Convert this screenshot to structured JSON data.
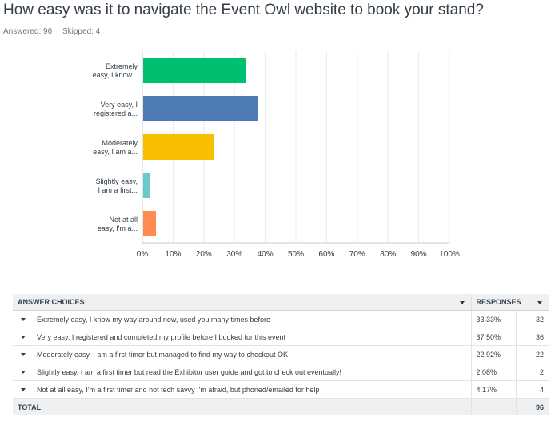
{
  "survey": {
    "question": "How easy was it to navigate the Event Owl website to book your stand?",
    "answered": "Answered: 96",
    "skipped": "Skipped: 4"
  },
  "chart_data": {
    "type": "bar",
    "orientation": "horizontal",
    "categories": [
      [
        "Extremely",
        "easy, I know..."
      ],
      [
        "Very easy, I",
        "registered a..."
      ],
      [
        "Moderately",
        "easy, I am a..."
      ],
      [
        "Slightly easy,",
        "I am a first..."
      ],
      [
        "Not at all",
        "easy, I'm a..."
      ]
    ],
    "values": [
      33.33,
      37.5,
      22.92,
      2.08,
      4.17
    ],
    "colors": [
      "#00bf6f",
      "#507cb6",
      "#f9be00",
      "#6bc8cd",
      "#ff8b4f"
    ],
    "x_ticks": [
      "0%",
      "10%",
      "20%",
      "30%",
      "40%",
      "50%",
      "60%",
      "70%",
      "80%",
      "90%",
      "100%"
    ],
    "xlim": [
      0,
      100
    ],
    "grid": true
  },
  "table": {
    "headers": {
      "choices": "ANSWER CHOICES",
      "responses": "RESPONSES"
    },
    "rows": [
      {
        "choice": "Extremely easy, I know my way around now, used you many times before",
        "percent": "33.33%",
        "count": "32"
      },
      {
        "choice": "Very easy, I registered and completed my profile before I booked for this event",
        "percent": "37.50%",
        "count": "36"
      },
      {
        "choice": "Moderately easy, I am a first timer but managed to find my way to checkout OK",
        "percent": "22.92%",
        "count": "22"
      },
      {
        "choice": "Slightly easy, I am a first timer but read the Exhibitor user guide and got to check out eventually!",
        "percent": "2.08%",
        "count": "2"
      },
      {
        "choice": "Not at all easy, I'm a first timer and not tech savvy I'm afraid, but phoned/emailed for help",
        "percent": "4.17%",
        "count": "4"
      }
    ],
    "total_label": "TOTAL",
    "total_count": "96"
  }
}
